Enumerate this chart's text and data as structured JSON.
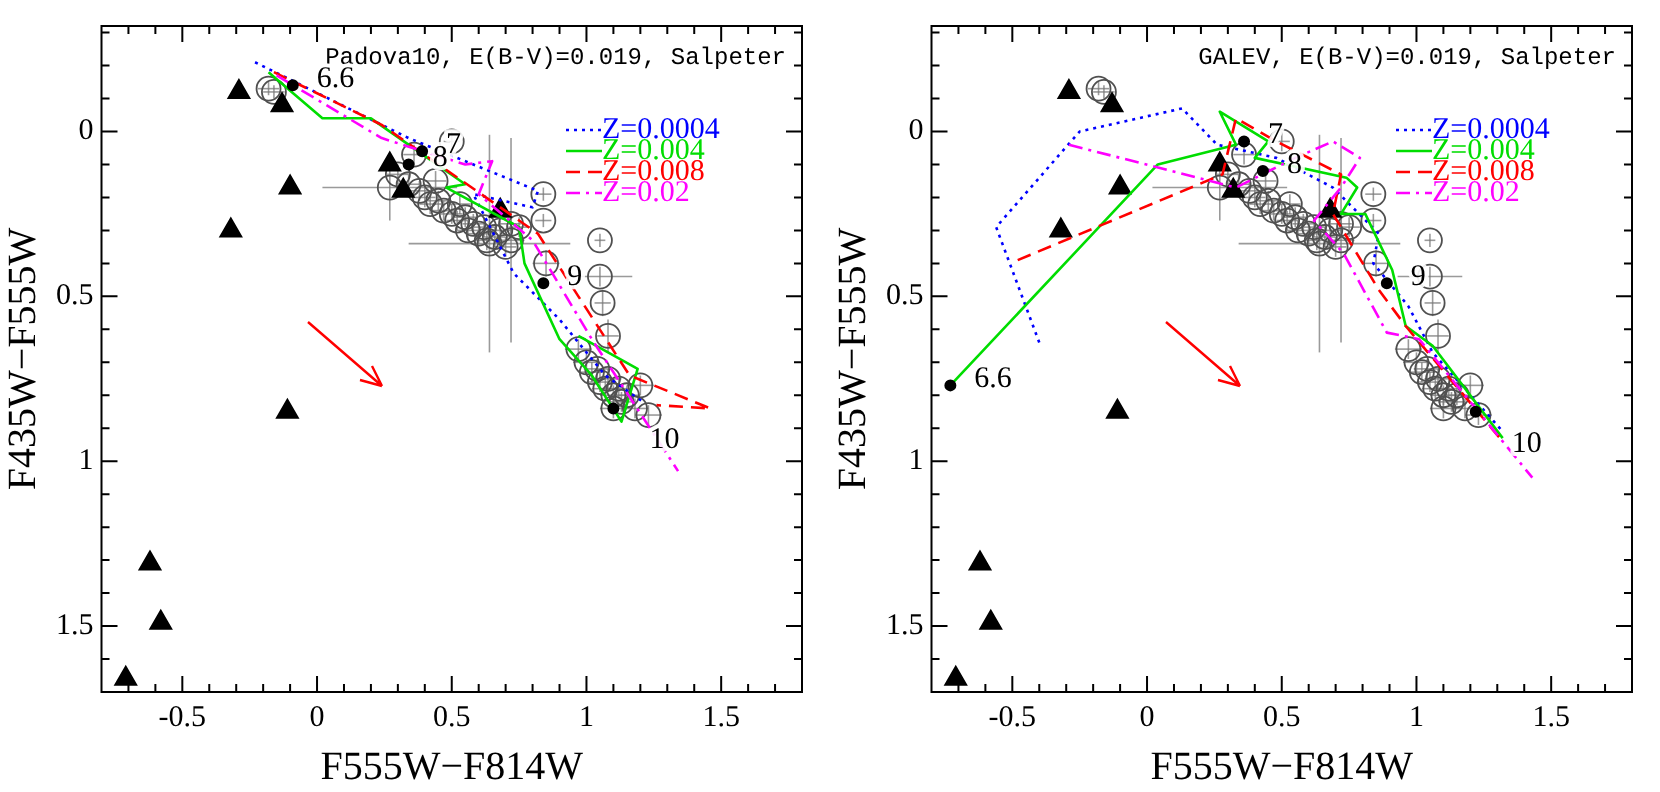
{
  "chart_data": [
    {
      "type": "scatter",
      "title": "Padova10, E(B-V)=0.019, Salpeter",
      "xlabel": "F555W−F814W",
      "ylabel": "F435W−F555W",
      "xlim": [
        -0.8,
        1.8
      ],
      "ylim": [
        1.7,
        -0.32
      ],
      "xticks": [
        {
          "value": -0.7,
          "label": null
        },
        {
          "value": -0.6,
          "label": null
        },
        -0.5,
        {
          "value": -0.4,
          "label": null
        },
        {
          "value": -0.3,
          "label": null
        },
        {
          "value": -0.2,
          "label": null
        },
        {
          "value": -0.1,
          "label": null
        },
        0,
        {
          "value": 0.1,
          "label": null
        },
        {
          "value": 0.2,
          "label": null
        },
        {
          "value": 0.3,
          "label": null
        },
        {
          "value": 0.4,
          "label": null
        },
        0.5,
        {
          "value": 0.6,
          "label": null
        },
        {
          "value": 0.7,
          "label": null
        },
        {
          "value": 0.8,
          "label": null
        },
        {
          "value": 0.9,
          "label": null
        },
        1,
        {
          "value": 1.1,
          "label": null
        },
        {
          "value": 1.2,
          "label": null
        },
        {
          "value": 1.3,
          "label": null
        },
        {
          "value": 1.4,
          "label": null
        },
        1.5,
        {
          "value": 1.6,
          "label": null
        },
        {
          "value": 1.7,
          "label": null
        }
      ],
      "yticks": [
        {
          "value": -0.3,
          "label": null
        },
        {
          "value": -0.2,
          "label": null
        },
        {
          "value": -0.1,
          "label": null
        },
        0,
        {
          "value": 0.1,
          "label": null
        },
        {
          "value": 0.2,
          "label": null
        },
        {
          "value": 0.3,
          "label": null
        },
        {
          "value": 0.4,
          "label": null
        },
        0.5,
        {
          "value": 0.6,
          "label": null
        },
        {
          "value": 0.7,
          "label": null
        },
        {
          "value": 0.8,
          "label": null
        },
        {
          "value": 0.9,
          "label": null
        },
        1,
        {
          "value": 1.1,
          "label": null
        },
        {
          "value": 1.2,
          "label": null
        },
        {
          "value": 1.3,
          "label": null
        },
        {
          "value": 1.4,
          "label": null
        },
        1.5,
        {
          "value": 1.6,
          "label": null
        },
        {
          "value": 1.7,
          "label": null
        }
      ],
      "grid": false,
      "legend": "top right",
      "annotations": [
        {
          "text": "6.6",
          "x": -0.09,
          "y": -0.14
        },
        {
          "text": "7",
          "x": 0.39,
          "y": 0.06
        },
        {
          "text": "8",
          "x": 0.34,
          "y": 0.1
        },
        {
          "text": "9",
          "x": 0.84,
          "y": 0.46
        },
        {
          "text": "10",
          "x": 1.1,
          "y": 0.84
        }
      ],
      "series": [
        {
          "type": "scatter",
          "marker": "circle",
          "color": "#505050",
          "x": [
            -0.18,
            -0.16,
            0.5,
            0.27,
            0.84,
            0.84,
            1.05,
            1.05,
            1.06,
            1.08,
            0.85,
            0.64,
            0.72,
            0.3,
            0.34,
            0.38,
            0.4,
            0.42,
            0.45,
            0.47,
            0.5,
            0.52,
            0.55,
            0.56,
            0.58,
            0.6,
            0.62,
            0.63,
            0.66,
            0.68,
            0.7,
            0.72,
            0.75,
            0.36,
            0.44,
            0.53,
            0.97,
            1,
            1.02,
            1.04,
            1.05,
            1.07,
            1.08,
            1.1,
            1.12,
            1.13,
            1.15,
            1.18,
            1.2,
            1.23,
            1.1
          ],
          "values": [
            -0.13,
            -0.12,
            0.03,
            0.17,
            0.19,
            0.27,
            0.33,
            0.44,
            0.52,
            0.62,
            0.4,
            0.34,
            0.33,
            0.13,
            0.16,
            0.18,
            0.2,
            0.22,
            0.21,
            0.24,
            0.25,
            0.27,
            0.26,
            0.3,
            0.28,
            0.31,
            0.29,
            0.33,
            0.32,
            0.3,
            0.35,
            0.28,
            0.29,
            0.07,
            0.15,
            0.22,
            0.66,
            0.7,
            0.73,
            0.72,
            0.76,
            0.78,
            0.75,
            0.8,
            0.78,
            0.82,
            0.8,
            0.84,
            0.77,
            0.86,
            0.84
          ],
          "errors": [
            0.02,
            0.02,
            0.03,
            0.1,
            0.02,
            0.02,
            0.02,
            0.03,
            0.04,
            0.05,
            0.04,
            0.33,
            0.31,
            0.03,
            0.03,
            0.03,
            0.03,
            0.03,
            0.03,
            0.03,
            0.03,
            0.03,
            0.03,
            0.03,
            0.03,
            0.03,
            0.03,
            0.03,
            0.03,
            0.03,
            0.03,
            0.03,
            0.03,
            0.03,
            0.03,
            0.03,
            0.03,
            0.03,
            0.03,
            0.03,
            0.03,
            0.03,
            0.03,
            0.03,
            0.03,
            0.03,
            0.03,
            0.03,
            0.03,
            0.03,
            0.03
          ],
          "xerrors": [
            0.04,
            0.04,
            0.03,
            0.25,
            0.03,
            0.03,
            0.02,
            0.12,
            0.03,
            0.04,
            0.05,
            0.3,
            0.05,
            0.04,
            0.04,
            0.04,
            0.04,
            0.04,
            0.04,
            0.04,
            0.04,
            0.04,
            0.04,
            0.04,
            0.04,
            0.04,
            0.04,
            0.04,
            0.04,
            0.04,
            0.04,
            0.04,
            0.04,
            0.04,
            0.04,
            0.04,
            0.05,
            0.05,
            0.05,
            0.05,
            0.05,
            0.05,
            0.05,
            0.05,
            0.05,
            0.05,
            0.05,
            0.05,
            0.05,
            0.05,
            0.05
          ]
        },
        {
          "type": "scatter",
          "marker": "triangle",
          "color": "#000000",
          "x": [
            -0.29,
            -0.13,
            0.27,
            0.32,
            -0.1,
            -0.32,
            0.68,
            -0.11,
            -0.62,
            -0.58,
            -0.71
          ],
          "values": [
            -0.12,
            -0.08,
            0.1,
            0.18,
            0.17,
            0.3,
            0.24,
            0.85,
            1.31,
            1.49,
            1.66
          ]
        },
        {
          "type": "line",
          "name": "Z=0.0004",
          "color": "#0000ff",
          "line_style": "dotted",
          "x": [
            -0.23,
            0.34,
            0.82,
            0.8,
            0.58,
            0.73,
            0.9,
            1.07,
            1.21
          ],
          "values": [
            -0.21,
            0.02,
            0.18,
            0.23,
            0.19,
            0.43,
            0.57,
            0.74,
            0.82
          ]
        },
        {
          "type": "line",
          "name": "Z=0.004",
          "color": "#00dd00",
          "line_style": "solid",
          "x": [
            -0.18,
            0.02,
            0.2,
            0.41,
            0.55,
            0.48,
            0.75,
            0.77,
            0.9,
            1.02,
            1.13,
            1.19,
            0.97
          ],
          "values": [
            -0.18,
            -0.04,
            -0.04,
            0.08,
            0.16,
            0.17,
            0.29,
            0.4,
            0.63,
            0.74,
            0.88,
            0.72,
            0.62
          ]
        },
        {
          "type": "line",
          "name": "Z=0.008",
          "color": "#ff0000",
          "line_style": "dashed",
          "x": [
            -0.16,
            0.24,
            0.38,
            0.68,
            0.82,
            0.97,
            1.16,
            1.46,
            1.26
          ],
          "values": [
            -0.18,
            -0.02,
            0.06,
            0.23,
            0.31,
            0.5,
            0.74,
            0.84,
            0.83
          ]
        },
        {
          "type": "line",
          "name": "Z=0.02",
          "color": "#ff00ff",
          "line_style": "dashdot",
          "x": [
            -0.15,
            0.24,
            0.55,
            0.65,
            0.6,
            0.8,
            1.02,
            1.34
          ],
          "values": [
            -0.17,
            0.02,
            0.1,
            0.09,
            0.19,
            0.33,
            0.63,
            1.03
          ]
        },
        {
          "type": "scatter",
          "marker": "circle",
          "color": "#000000",
          "x": [
            -0.09,
            0.39,
            0.34,
            0.84,
            1.1
          ],
          "values": [
            -0.14,
            0.06,
            0.1,
            0.46,
            0.84
          ]
        }
      ]
    },
    {
      "type": "scatter",
      "title": "GALEV, E(B-V)=0.019, Salpeter",
      "xlabel": "F555W−F814W",
      "ylabel": "F435W−F555W",
      "xlim": [
        -0.8,
        1.8
      ],
      "ylim": [
        1.7,
        -0.32
      ],
      "xticks": [
        {
          "value": -0.7,
          "label": null
        },
        {
          "value": -0.6,
          "label": null
        },
        -0.5,
        {
          "value": -0.4,
          "label": null
        },
        {
          "value": -0.3,
          "label": null
        },
        {
          "value": -0.2,
          "label": null
        },
        {
          "value": -0.1,
          "label": null
        },
        0,
        {
          "value": 0.1,
          "label": null
        },
        {
          "value": 0.2,
          "label": null
        },
        {
          "value": 0.3,
          "label": null
        },
        {
          "value": 0.4,
          "label": null
        },
        0.5,
        {
          "value": 0.6,
          "label": null
        },
        {
          "value": 0.7,
          "label": null
        },
        {
          "value": 0.8,
          "label": null
        },
        {
          "value": 0.9,
          "label": null
        },
        1,
        {
          "value": 1.1,
          "label": null
        },
        {
          "value": 1.2,
          "label": null
        },
        {
          "value": 1.3,
          "label": null
        },
        {
          "value": 1.4,
          "label": null
        },
        1.5,
        {
          "value": 1.6,
          "label": null
        },
        {
          "value": 1.7,
          "label": null
        }
      ],
      "yticks": [
        {
          "value": -0.3,
          "label": null
        },
        {
          "value": -0.2,
          "label": null
        },
        {
          "value": -0.1,
          "label": null
        },
        0,
        {
          "value": 0.1,
          "label": null
        },
        {
          "value": 0.2,
          "label": null
        },
        {
          "value": 0.3,
          "label": null
        },
        {
          "value": 0.4,
          "label": null
        },
        0.5,
        {
          "value": 0.6,
          "label": null
        },
        {
          "value": 0.7,
          "label": null
        },
        {
          "value": 0.8,
          "label": null
        },
        {
          "value": 0.9,
          "label": null
        },
        1,
        {
          "value": 1.1,
          "label": null
        },
        {
          "value": 1.2,
          "label": null
        },
        {
          "value": 1.3,
          "label": null
        },
        {
          "value": 1.4,
          "label": null
        },
        1.5,
        {
          "value": 1.6,
          "label": null
        },
        {
          "value": 1.7,
          "label": null
        }
      ],
      "grid": false,
      "legend": "top right",
      "annotations": [
        {
          "text": "6.6",
          "x": -0.73,
          "y": 0.77
        },
        {
          "text": "7",
          "x": 0.36,
          "y": 0.03
        },
        {
          "text": "8",
          "x": 0.43,
          "y": 0.12
        },
        {
          "text": "9",
          "x": 0.89,
          "y": 0.46
        },
        {
          "text": "10",
          "x": 1.22,
          "y": 0.85
        }
      ],
      "series": [
        {
          "type": "scatter",
          "marker": "circle",
          "color": "#505050",
          "x": [
            -0.18,
            -0.16,
            0.5,
            0.27,
            0.84,
            0.84,
            1.05,
            1.05,
            1.06,
            1.08,
            0.85,
            0.64,
            0.72,
            0.3,
            0.34,
            0.38,
            0.4,
            0.42,
            0.45,
            0.47,
            0.5,
            0.52,
            0.55,
            0.56,
            0.58,
            0.6,
            0.62,
            0.63,
            0.66,
            0.68,
            0.7,
            0.72,
            0.75,
            0.36,
            0.44,
            0.53,
            0.97,
            1,
            1.02,
            1.04,
            1.05,
            1.07,
            1.08,
            1.1,
            1.12,
            1.13,
            1.15,
            1.18,
            1.2,
            1.23,
            1.1
          ],
          "values": [
            -0.13,
            -0.12,
            0.03,
            0.17,
            0.19,
            0.27,
            0.33,
            0.44,
            0.52,
            0.62,
            0.4,
            0.34,
            0.33,
            0.13,
            0.16,
            0.18,
            0.2,
            0.22,
            0.21,
            0.24,
            0.25,
            0.27,
            0.26,
            0.3,
            0.28,
            0.31,
            0.29,
            0.33,
            0.32,
            0.3,
            0.35,
            0.28,
            0.29,
            0.07,
            0.15,
            0.22,
            0.66,
            0.7,
            0.73,
            0.72,
            0.76,
            0.78,
            0.75,
            0.8,
            0.78,
            0.82,
            0.8,
            0.84,
            0.77,
            0.86,
            0.84
          ],
          "errors": [
            0.02,
            0.02,
            0.03,
            0.1,
            0.02,
            0.02,
            0.02,
            0.03,
            0.04,
            0.05,
            0.04,
            0.33,
            0.31,
            0.03,
            0.03,
            0.03,
            0.03,
            0.03,
            0.03,
            0.03,
            0.03,
            0.03,
            0.03,
            0.03,
            0.03,
            0.03,
            0.03,
            0.03,
            0.03,
            0.03,
            0.03,
            0.03,
            0.03,
            0.03,
            0.03,
            0.03,
            0.03,
            0.03,
            0.03,
            0.03,
            0.03,
            0.03,
            0.03,
            0.03,
            0.03,
            0.03,
            0.03,
            0.03,
            0.03,
            0.03,
            0.03
          ],
          "xerrors": [
            0.04,
            0.04,
            0.03,
            0.25,
            0.03,
            0.03,
            0.02,
            0.12,
            0.03,
            0.04,
            0.05,
            0.3,
            0.05,
            0.04,
            0.04,
            0.04,
            0.04,
            0.04,
            0.04,
            0.04,
            0.04,
            0.04,
            0.04,
            0.04,
            0.04,
            0.04,
            0.04,
            0.04,
            0.04,
            0.04,
            0.04,
            0.04,
            0.04,
            0.04,
            0.04,
            0.04,
            0.05,
            0.05,
            0.05,
            0.05,
            0.05,
            0.05,
            0.05,
            0.05,
            0.05,
            0.05,
            0.05,
            0.05,
            0.05,
            0.05,
            0.05
          ]
        },
        {
          "type": "scatter",
          "marker": "triangle",
          "color": "#000000",
          "x": [
            -0.29,
            -0.13,
            0.27,
            0.32,
            -0.1,
            -0.32,
            0.68,
            -0.11,
            -0.62,
            -0.58,
            -0.71
          ],
          "values": [
            -0.12,
            -0.08,
            0.1,
            0.18,
            0.17,
            0.3,
            0.24,
            0.85,
            1.31,
            1.49,
            1.66
          ]
        },
        {
          "type": "line",
          "name": "Z=0.0004",
          "color": "#0000ff",
          "line_style": "dotted",
          "x": [
            -0.4,
            -0.56,
            -0.25,
            0.13,
            0.26,
            0.48,
            0.69,
            0.86,
            0.84,
            0.97,
            1.06,
            1.32
          ],
          "values": [
            0.64,
            0.29,
            0,
            -0.07,
            0.04,
            0.08,
            0.17,
            0.31,
            0.4,
            0.53,
            0.67,
            0.91
          ]
        },
        {
          "type": "line",
          "name": "Z=0.004",
          "color": "#00dd00",
          "line_style": "solid",
          "x": [
            -0.73,
            0.04,
            0.33,
            0.27,
            0.45,
            0.4,
            0.74,
            0.78,
            0.72,
            0.81,
            0.91,
            0.96,
            1.06,
            1.32
          ],
          "values": [
            0.77,
            0.1,
            0.04,
            -0.06,
            0.03,
            0.08,
            0.14,
            0.17,
            0.25,
            0.25,
            0.42,
            0.59,
            0.65,
            0.93
          ]
        },
        {
          "type": "line",
          "name": "Z=0.008",
          "color": "#ff0000",
          "line_style": "dashed",
          "x": [
            -0.48,
            0.28,
            0.33,
            0.48,
            0.72,
            0.69,
            0.86,
            0.96,
            1.32
          ],
          "values": [
            0.39,
            0.13,
            -0.04,
            0.03,
            0.13,
            0.25,
            0.48,
            0.59,
            0.94
          ]
        },
        {
          "type": "line",
          "name": "Z=0.02",
          "color": "#ff00ff",
          "line_style": "dashdot",
          "x": [
            -0.29,
            0.33,
            0.55,
            0.69,
            0.79,
            0.72,
            0.62,
            0.73,
            0.89,
            1.01,
            1.43
          ],
          "values": [
            0.04,
            0.17,
            0.08,
            0.03,
            0.08,
            0.17,
            0.27,
            0.37,
            0.61,
            0.63,
            1.05
          ]
        },
        {
          "type": "scatter",
          "marker": "circle",
          "color": "#000000",
          "x": [
            -0.73,
            0.36,
            0.43,
            0.89,
            1.22
          ],
          "values": [
            0.77,
            0.03,
            0.12,
            0.46,
            0.85
          ]
        }
      ]
    }
  ]
}
